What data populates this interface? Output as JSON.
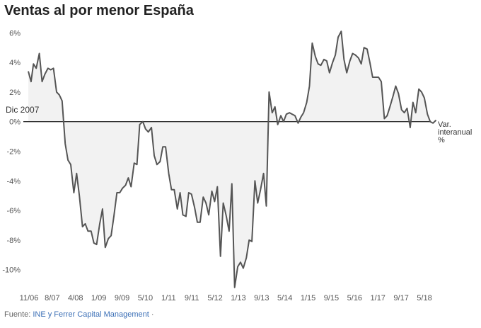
{
  "title": "Ventas al por menor España",
  "source": {
    "prefix": "Fuente: ",
    "link_text": "INE y Ferrer Capital Management",
    "suffix": " ·"
  },
  "colors": {
    "line": "#555555",
    "area": "#f2f2f2",
    "zero_line": "#333333",
    "text": "#333333",
    "axis_text": "#555555",
    "link": "#3b6fb6"
  },
  "chart_data": {
    "type": "area",
    "title": "Ventas al por menor España",
    "ylim": [
      -11.5,
      6.3
    ],
    "yticks": [
      6,
      4,
      2,
      0,
      -2,
      -4,
      -6,
      -8,
      -10
    ],
    "ytick_labels": [
      "6%",
      "4%",
      "2%",
      "0%",
      "-2%",
      "-4%",
      "-6%",
      "-8%",
      "-10%"
    ],
    "grid": false,
    "xtick_labels": [
      "11/06",
      "8/07",
      "4/08",
      "1/09",
      "9/09",
      "5/10",
      "1/11",
      "9/11",
      "5/12",
      "1/13",
      "9/13",
      "5/14",
      "1/15",
      "9/15",
      "5/16",
      "1/17",
      "9/17",
      "5/18"
    ],
    "annotations": [
      {
        "text": "Dic 2007",
        "x": 2007.92,
        "y": 0.9
      },
      {
        "text": "Var. interanual %",
        "x": 2018.75,
        "y": 0.0
      }
    ],
    "series": [
      {
        "name": "Var. interanual %",
        "x": [
          2006.85,
          2006.93,
          2007.0,
          2007.08,
          2007.17,
          2007.25,
          2007.33,
          2007.42,
          2007.5,
          2007.58,
          2007.67,
          2007.75,
          2007.83,
          2007.92,
          2008.0,
          2008.08,
          2008.17,
          2008.25,
          2008.33,
          2008.42,
          2008.5,
          2008.58,
          2008.67,
          2008.75,
          2008.83,
          2008.92,
          2009.0,
          2009.08,
          2009.17,
          2009.25,
          2009.33,
          2009.42,
          2009.5,
          2009.58,
          2009.67,
          2009.75,
          2009.83,
          2009.92,
          2010.0,
          2010.08,
          2010.17,
          2010.25,
          2010.33,
          2010.42,
          2010.5,
          2010.58,
          2010.67,
          2010.75,
          2010.83,
          2010.92,
          2011.0,
          2011.08,
          2011.17,
          2011.25,
          2011.33,
          2011.42,
          2011.5,
          2011.58,
          2011.67,
          2011.75,
          2011.83,
          2011.92,
          2012.0,
          2012.08,
          2012.17,
          2012.25,
          2012.33,
          2012.42,
          2012.5,
          2012.58,
          2012.67,
          2012.75,
          2012.83,
          2012.92,
          2013.0,
          2013.08,
          2013.17,
          2013.25,
          2013.33,
          2013.42,
          2013.5,
          2013.58,
          2013.67,
          2013.75,
          2013.83,
          2013.92,
          2014.0,
          2014.08,
          2014.17,
          2014.25,
          2014.33,
          2014.42,
          2014.5,
          2014.58,
          2014.67,
          2014.75,
          2014.83,
          2014.92,
          2015.0,
          2015.08,
          2015.17,
          2015.25,
          2015.33,
          2015.42,
          2015.5,
          2015.58,
          2015.67,
          2015.75,
          2015.83,
          2015.92,
          2016.0,
          2016.08,
          2016.17,
          2016.25,
          2016.33,
          2016.42,
          2016.5,
          2016.58,
          2016.67,
          2016.75,
          2016.83,
          2016.92,
          2017.0,
          2017.08,
          2017.17,
          2017.25,
          2017.33,
          2017.42,
          2017.5,
          2017.58,
          2017.67,
          2017.75,
          2017.83,
          2017.92,
          2018.0,
          2018.08,
          2018.17,
          2018.25,
          2018.33,
          2018.42,
          2018.5,
          2018.58,
          2018.67
        ],
        "y": [
          3.4,
          2.7,
          3.9,
          3.6,
          4.6,
          2.7,
          3.2,
          3.6,
          3.5,
          3.6,
          2.0,
          1.8,
          1.4,
          -1.5,
          -2.6,
          -2.9,
          -4.8,
          -3.5,
          -5.0,
          -7.1,
          -6.9,
          -7.4,
          -7.4,
          -8.2,
          -8.3,
          -6.9,
          -5.9,
          -8.5,
          -7.9,
          -7.7,
          -6.4,
          -4.8,
          -4.8,
          -4.5,
          -4.3,
          -3.8,
          -4.4,
          -2.8,
          -2.9,
          -0.2,
          0.0,
          -0.5,
          -0.7,
          -0.4,
          -2.3,
          -2.9,
          -2.7,
          -1.7,
          -1.7,
          -3.5,
          -4.6,
          -4.6,
          -5.9,
          -4.8,
          -6.3,
          -6.4,
          -4.8,
          -4.9,
          -5.8,
          -6.8,
          -6.8,
          -5.1,
          -5.5,
          -6.3,
          -4.7,
          -5.4,
          -4.4,
          -9.1,
          -5.5,
          -6.3,
          -7.4,
          -4.2,
          -11.2,
          -9.8,
          -9.5,
          -9.9,
          -9.2,
          -8.0,
          -8.1,
          -4.0,
          -5.5,
          -4.6,
          -3.5,
          -5.7,
          2.0,
          0.6,
          1.0,
          -0.2,
          0.4,
          0.0,
          0.5,
          0.6,
          0.5,
          0.4,
          -0.1,
          0.3,
          0.6,
          1.3,
          2.4,
          5.3,
          4.4,
          3.9,
          3.8,
          4.2,
          4.1,
          3.3,
          4.0,
          4.5,
          5.7,
          6.1,
          4.2,
          3.3,
          4.1,
          4.6,
          4.5,
          4.3,
          3.9,
          5.0,
          4.9,
          4.0,
          3.0,
          3.0,
          3.0,
          2.7,
          0.2,
          0.4,
          1.0,
          1.7,
          2.4,
          1.9,
          0.8,
          0.6,
          0.9,
          -0.4,
          1.3,
          0.6,
          2.2,
          2.0,
          1.6,
          0.5,
          0.0,
          -0.1,
          0.1
        ]
      }
    ]
  }
}
